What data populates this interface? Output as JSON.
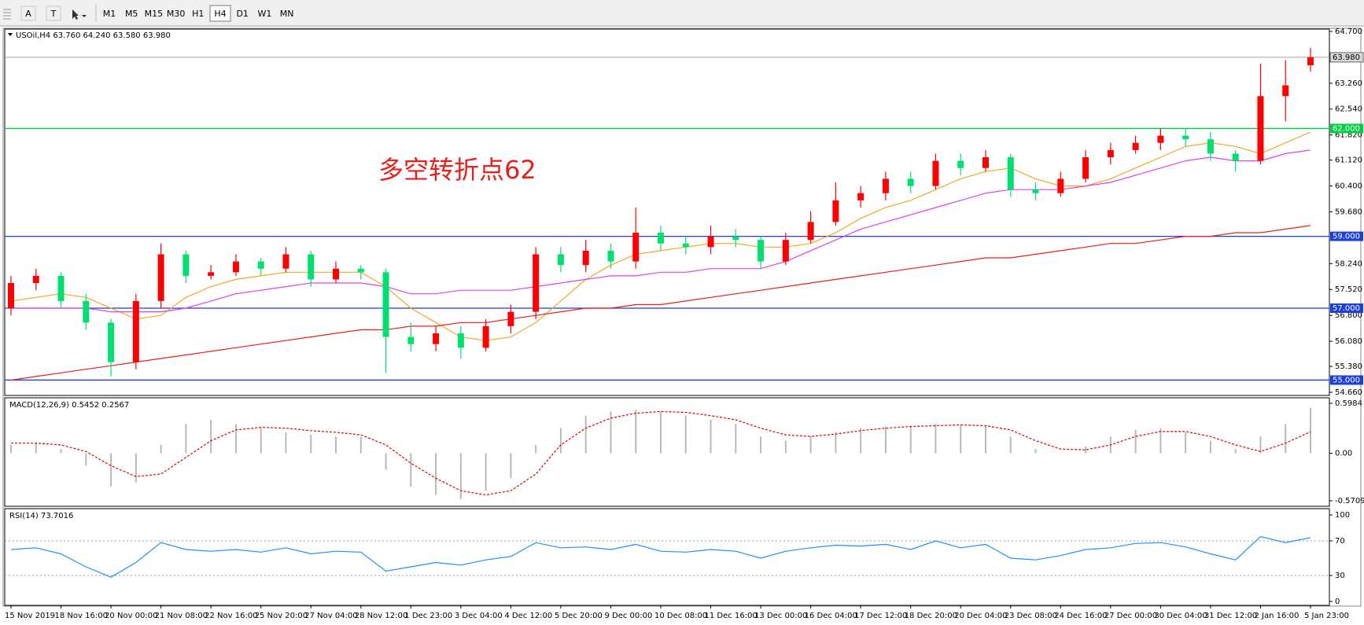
{
  "toolbar": {
    "tools": [
      "A",
      "T"
    ],
    "timeframes": [
      "M1",
      "M5",
      "M15",
      "M30",
      "H1",
      "H4",
      "D1",
      "W1",
      "MN"
    ]
  },
  "chart_data": [
    {
      "type": "candlestick",
      "title": "USOil,H4  63.760 64.240 63.580 63.980",
      "annotation": "多空转折点62",
      "categories": [
        "15 Nov 2019",
        null,
        "18 Nov 16:00",
        null,
        "20 Nov 00:00",
        null,
        "21 Nov 08:00",
        null,
        "22 Nov 16:00",
        null,
        "25 Nov 20:00",
        null,
        "27 Nov 04:00",
        null,
        "28 Nov 12:00",
        null,
        "1 Dec 23:00",
        null,
        "3 Dec 04:00",
        null,
        "4 Dec 12:00",
        null,
        "5 Dec 20:00",
        null,
        "9 Dec 00:00",
        null,
        "10 Dec 08:00",
        null,
        "11 Dec 16:00",
        null,
        "13 Dec 00:00",
        null,
        "16 Dec 04:00",
        null,
        "17 Dec 12:00",
        null,
        "18 Dec 20:00",
        null,
        "20 Dec 04:00",
        null,
        "23 Dec 08:00",
        null,
        "24 Dec 16:00",
        null,
        "27 Dec 00:00",
        null,
        "30 Dec 04:00",
        null,
        "31 Dec 12:00",
        null,
        "2 Jan 16:00",
        null,
        "5 Jan 23:00"
      ],
      "open": [
        57.0,
        57.7,
        57.9,
        57.2,
        56.6,
        55.5,
        57.2,
        58.5,
        57.9,
        58.0,
        58.3,
        58.1,
        58.5,
        57.8,
        58.1,
        58.0,
        56.2,
        56.0,
        56.3,
        55.9,
        56.5,
        56.9,
        58.5,
        58.2,
        58.6,
        58.3,
        59.1,
        58.8,
        58.7,
        59.0,
        58.9,
        58.3,
        58.9,
        59.4,
        60.0,
        60.2,
        60.6,
        60.4,
        61.1,
        60.9,
        61.2,
        60.3,
        60.2,
        60.6,
        61.2,
        61.4,
        61.6,
        61.8,
        61.7,
        61.3,
        61.1,
        62.9,
        63.76
      ],
      "high": [
        57.9,
        58.1,
        58.0,
        57.4,
        56.7,
        57.4,
        58.8,
        58.6,
        58.2,
        58.5,
        58.4,
        58.7,
        58.6,
        58.3,
        58.2,
        58.1,
        56.6,
        56.5,
        56.5,
        56.7,
        57.1,
        58.7,
        58.7,
        58.9,
        58.8,
        59.8,
        59.3,
        59.0,
        59.3,
        59.2,
        59.0,
        59.1,
        59.7,
        60.5,
        60.4,
        60.8,
        60.8,
        61.3,
        61.3,
        61.4,
        61.3,
        60.5,
        60.8,
        61.4,
        61.6,
        61.8,
        62.0,
        62.0,
        61.9,
        61.4,
        63.8,
        63.9,
        64.24
      ],
      "low": [
        56.8,
        57.5,
        57.0,
        56.4,
        55.1,
        55.3,
        57.0,
        57.7,
        57.8,
        57.9,
        57.9,
        58.0,
        57.6,
        57.7,
        57.8,
        55.2,
        55.8,
        55.8,
        55.6,
        55.8,
        56.3,
        56.7,
        58.0,
        58.0,
        58.1,
        58.1,
        58.6,
        58.5,
        58.5,
        58.7,
        58.1,
        58.2,
        58.8,
        59.3,
        59.8,
        60.0,
        60.2,
        60.3,
        60.7,
        60.8,
        60.1,
        60.0,
        60.1,
        60.5,
        61.0,
        61.3,
        61.4,
        61.5,
        61.1,
        60.8,
        61.0,
        62.2,
        63.58
      ],
      "close": [
        57.7,
        57.9,
        57.2,
        56.6,
        55.5,
        57.2,
        58.5,
        57.9,
        58.0,
        58.3,
        58.1,
        58.5,
        57.8,
        58.1,
        58.0,
        56.2,
        56.0,
        56.3,
        55.9,
        56.5,
        56.9,
        58.5,
        58.2,
        58.6,
        58.3,
        59.1,
        58.8,
        58.7,
        59.0,
        58.9,
        58.3,
        58.9,
        59.4,
        60.0,
        60.2,
        60.6,
        60.4,
        61.1,
        60.9,
        61.2,
        60.3,
        60.2,
        60.6,
        61.2,
        61.4,
        61.6,
        61.8,
        61.7,
        61.3,
        61.1,
        62.9,
        63.2,
        63.98
      ],
      "up_color": "#ff0000",
      "down_color": "#00e070",
      "series": [
        {
          "color": "#f5a623",
          "values": [
            57.2,
            57.3,
            57.4,
            57.3,
            57.0,
            56.7,
            56.8,
            57.3,
            57.6,
            57.8,
            57.9,
            58.0,
            58.0,
            58.0,
            58.0,
            57.6,
            57.0,
            56.6,
            56.2,
            56.1,
            56.2,
            56.6,
            57.2,
            57.8,
            58.2,
            58.5,
            58.6,
            58.7,
            58.8,
            58.8,
            58.7,
            58.7,
            58.8,
            59.1,
            59.5,
            59.8,
            60.0,
            60.3,
            60.6,
            60.8,
            60.9,
            60.6,
            60.4,
            60.4,
            60.6,
            60.9,
            61.2,
            61.5,
            61.6,
            61.5,
            61.3,
            61.6,
            61.9
          ]
        },
        {
          "color": "#e040e8",
          "values": [
            57.0,
            57.0,
            57.0,
            57.0,
            56.9,
            56.9,
            56.9,
            57.0,
            57.2,
            57.4,
            57.5,
            57.6,
            57.7,
            57.7,
            57.7,
            57.6,
            57.4,
            57.4,
            57.5,
            57.5,
            57.5,
            57.6,
            57.7,
            57.8,
            57.9,
            57.9,
            58.0,
            58.0,
            58.1,
            58.1,
            58.1,
            58.3,
            58.6,
            58.9,
            59.2,
            59.4,
            59.6,
            59.8,
            60.0,
            60.2,
            60.3,
            60.3,
            60.3,
            60.4,
            60.5,
            60.7,
            60.9,
            61.1,
            61.2,
            61.1,
            61.1,
            61.3,
            61.4
          ]
        },
        {
          "color": "#e8201a",
          "values": [
            55.0,
            55.1,
            55.2,
            55.3,
            55.4,
            55.5,
            55.6,
            55.7,
            55.8,
            55.9,
            56.0,
            56.1,
            56.2,
            56.3,
            56.4,
            56.4,
            56.5,
            56.5,
            56.6,
            56.6,
            56.7,
            56.8,
            56.9,
            57.0,
            57.0,
            57.1,
            57.1,
            57.2,
            57.3,
            57.4,
            57.5,
            57.6,
            57.7,
            57.8,
            57.9,
            58.0,
            58.1,
            58.2,
            58.3,
            58.4,
            58.4,
            58.5,
            58.6,
            58.7,
            58.8,
            58.8,
            58.9,
            59.0,
            59.0,
            59.1,
            59.1,
            59.2,
            59.3
          ]
        }
      ],
      "ylim": [
        54.66,
        64.7
      ],
      "yticks": [
        {
          "value": 54.66,
          "label": "54.660"
        },
        {
          "value": 55.38,
          "label": "55.380"
        },
        {
          "value": 56.08,
          "label": "56.080"
        },
        {
          "value": 56.8,
          "label": "56.800"
        },
        {
          "value": 57.52,
          "label": "57.520"
        },
        {
          "value": 58.24,
          "label": "58.240"
        },
        {
          "value": 59.68,
          "label": "59.680"
        },
        {
          "value": 60.4,
          "label": "60.400"
        },
        {
          "value": 61.12,
          "label": "61.120"
        },
        {
          "value": 61.82,
          "label": "61.820"
        },
        {
          "value": 62.54,
          "label": "62.540"
        },
        {
          "value": 63.26,
          "label": "63.260"
        },
        {
          "value": 64.7,
          "label": "64.700"
        }
      ],
      "hlines": [
        {
          "value": 62,
          "label": "62.000",
          "color": "#00d040"
        },
        {
          "value": 59,
          "label": "59.000",
          "color": "#1c3fd8"
        },
        {
          "value": 57,
          "label": "57.000",
          "color": "#1c3fd8"
        },
        {
          "value": 55,
          "label": "55.000",
          "color": "#1c3fd8"
        }
      ],
      "last": {
        "value": 63.98,
        "label": "63.980",
        "color": "#a0a0a0"
      }
    },
    {
      "type": "macd",
      "title": "MACD(12,26,9) 0.5452 0.2567",
      "series": [
        {
          "color": "#b8b8b8",
          "values": [
            0.1,
            0.12,
            0.05,
            -0.15,
            -0.4,
            -0.35,
            0.1,
            0.35,
            0.4,
            0.35,
            0.3,
            0.25,
            0.22,
            0.2,
            0.2,
            -0.2,
            -0.4,
            -0.5,
            -0.55,
            -0.45,
            -0.3,
            0.1,
            0.3,
            0.45,
            0.5,
            0.52,
            0.5,
            0.45,
            0.4,
            0.35,
            0.2,
            0.15,
            0.2,
            0.25,
            0.3,
            0.32,
            0.33,
            0.35,
            0.34,
            0.33,
            0.2,
            0.05,
            0.0,
            0.08,
            0.2,
            0.28,
            0.3,
            0.25,
            0.15,
            0.05,
            0.2,
            0.35,
            0.5452
          ]
        },
        {
          "color": "#e00000",
          "values": [
            0.12,
            0.12,
            0.1,
            0.02,
            -0.15,
            -0.28,
            -0.25,
            -0.05,
            0.15,
            0.28,
            0.31,
            0.3,
            0.27,
            0.25,
            0.22,
            0.1,
            -0.12,
            -0.3,
            -0.45,
            -0.5,
            -0.45,
            -0.25,
            0.1,
            0.3,
            0.42,
            0.48,
            0.5,
            0.49,
            0.45,
            0.4,
            0.3,
            0.22,
            0.2,
            0.23,
            0.27,
            0.3,
            0.32,
            0.33,
            0.34,
            0.33,
            0.28,
            0.15,
            0.05,
            0.04,
            0.1,
            0.2,
            0.26,
            0.26,
            0.2,
            0.1,
            0.02,
            0.12,
            0.2567
          ]
        }
      ],
      "ylim": [
        -0.5709,
        0.5984
      ],
      "yticks": [
        -0.5709,
        {
          "value": 0,
          "label": "0.00"
        },
        0.5984
      ]
    },
    {
      "type": "line",
      "title": "RSI(14) 73.7016",
      "color": "#1e90ff",
      "values": [
        60,
        62,
        55,
        40,
        28,
        45,
        68,
        60,
        58,
        60,
        57,
        62,
        55,
        58,
        57,
        35,
        40,
        45,
        42,
        48,
        52,
        68,
        62,
        63,
        60,
        66,
        58,
        57,
        60,
        58,
        50,
        58,
        62,
        65,
        64,
        66,
        60,
        70,
        62,
        66,
        50,
        48,
        53,
        60,
        62,
        67,
        68,
        63,
        55,
        48,
        75,
        68,
        73.7016
      ],
      "ylim": [
        0,
        100
      ],
      "yticks": [
        0,
        30,
        70,
        100
      ],
      "grid": true
    }
  ]
}
